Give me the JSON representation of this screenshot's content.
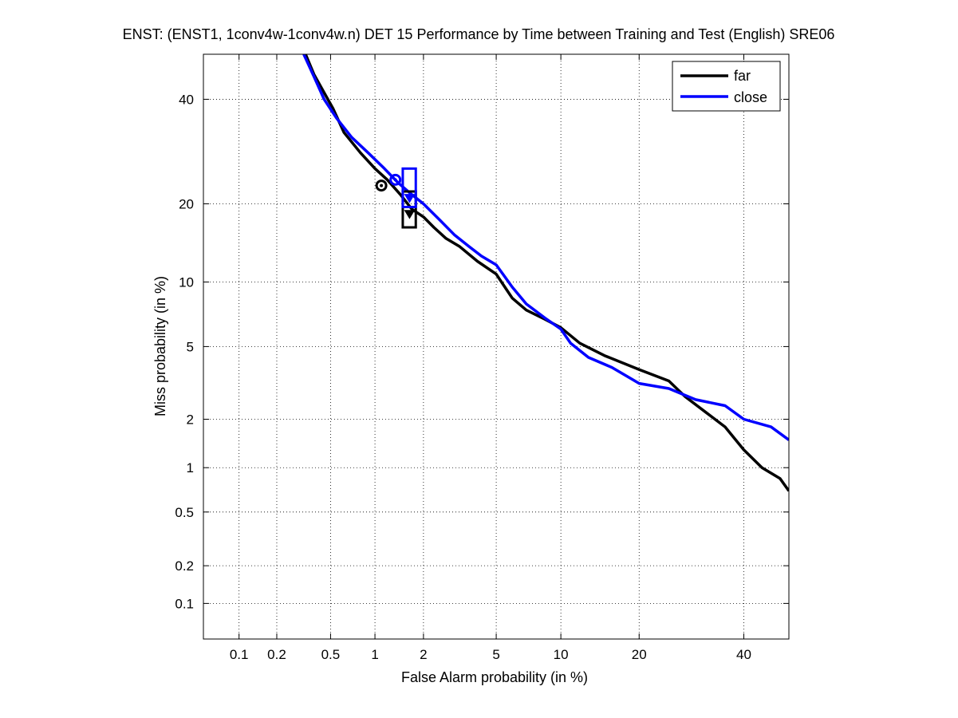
{
  "chart_data": {
    "type": "line",
    "title": "ENST: (ENST1, 1conv4w-1conv4w.n) DET 15 Performance by Time between Training and Test (English) SRE06",
    "xlabel": "False Alarm probability (in %)",
    "ylabel": "Miss probability (in %)",
    "xscale": "probit",
    "yscale": "probit",
    "xlim": [
      0.05,
      50
    ],
    "ylim": [
      0.05,
      50
    ],
    "xticks": [
      0.1,
      0.2,
      0.5,
      1,
      2,
      5,
      10,
      20,
      40
    ],
    "xtick_labels": [
      "0.1",
      "0.2",
      "0.5",
      "1",
      "2",
      "5",
      "10",
      "20",
      "40"
    ],
    "yticks": [
      0.1,
      0.2,
      0.5,
      1,
      2,
      5,
      10,
      20,
      40
    ],
    "ytick_labels": [
      "0.1",
      "0.2",
      "0.5",
      "1",
      "2",
      "5",
      "10",
      "20",
      "40"
    ],
    "grid": true,
    "legend_position": "top-right",
    "series": [
      {
        "name": "far",
        "color": "#000000",
        "points": [
          [
            0.33,
            50
          ],
          [
            0.38,
            45.5
          ],
          [
            0.44,
            42
          ],
          [
            0.52,
            38
          ],
          [
            0.62,
            33
          ],
          [
            0.8,
            29
          ],
          [
            1.0,
            26
          ],
          [
            1.2,
            24
          ],
          [
            1.45,
            21.5
          ],
          [
            1.7,
            19.2
          ],
          [
            2.0,
            18
          ],
          [
            2.3,
            16.5
          ],
          [
            2.7,
            15
          ],
          [
            3.2,
            14
          ],
          [
            4.0,
            12.2
          ],
          [
            5.0,
            10.8
          ],
          [
            6.0,
            8.5
          ],
          [
            7.0,
            7.5
          ],
          [
            8.5,
            6.8
          ],
          [
            10.0,
            6.2
          ],
          [
            12.0,
            5.2
          ],
          [
            15.0,
            4.5
          ],
          [
            20.0,
            3.8
          ],
          [
            25.0,
            3.3
          ],
          [
            28.0,
            2.7
          ],
          [
            32.0,
            2.2
          ],
          [
            36.0,
            1.8
          ],
          [
            40.0,
            1.3
          ],
          [
            44.0,
            1.0
          ],
          [
            48.0,
            0.85
          ],
          [
            50.0,
            0.7
          ]
        ],
        "dcf_point": [
          1.1,
          23
        ],
        "eer_point": [
          1.65,
          18.5
        ],
        "confidence_box": {
          "x": [
            1.5,
            1.8
          ],
          "y": [
            16.5,
            22
          ]
        }
      },
      {
        "name": "close",
        "color": "#0000ff",
        "points": [
          [
            0.32,
            50
          ],
          [
            0.38,
            45
          ],
          [
            0.45,
            40
          ],
          [
            0.55,
            36
          ],
          [
            0.7,
            32
          ],
          [
            0.9,
            29
          ],
          [
            1.15,
            26
          ],
          [
            1.4,
            23.5
          ],
          [
            1.7,
            21.5
          ],
          [
            2.0,
            20
          ],
          [
            2.5,
            17.5
          ],
          [
            3.0,
            15.5
          ],
          [
            3.6,
            14
          ],
          [
            4.2,
            12.8
          ],
          [
            5.0,
            11.8
          ],
          [
            6.0,
            9.5
          ],
          [
            7.0,
            8
          ],
          [
            8.5,
            6.9
          ],
          [
            10.0,
            6.1
          ],
          [
            11.0,
            5.2
          ],
          [
            13.0,
            4.4
          ],
          [
            16.0,
            3.9
          ],
          [
            20.0,
            3.2
          ],
          [
            25.0,
            3.0
          ],
          [
            30.0,
            2.6
          ],
          [
            36.0,
            2.4
          ],
          [
            40.0,
            2.0
          ],
          [
            46.0,
            1.8
          ],
          [
            50.0,
            1.5
          ]
        ],
        "dcf_point": [
          1.35,
          24
        ],
        "eer_point": [
          1.65,
          21
        ],
        "confidence_box": {
          "x": [
            1.5,
            1.8
          ],
          "y": [
            19.5,
            26
          ]
        }
      }
    ]
  }
}
